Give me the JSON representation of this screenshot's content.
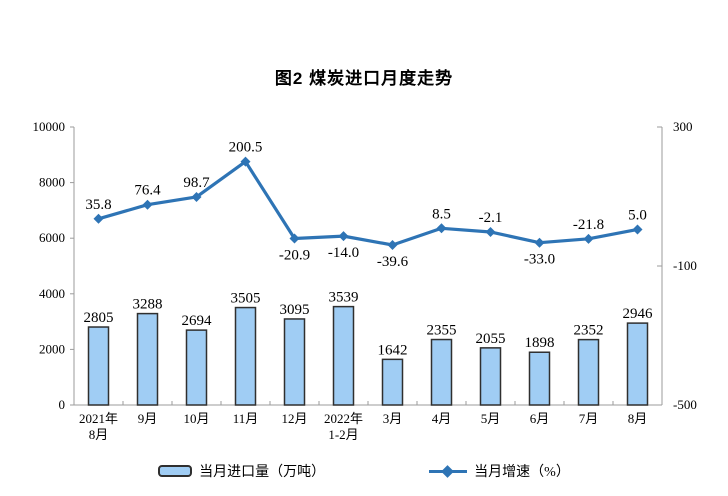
{
  "title": "图2 煤炭进口月度走势",
  "colors": {
    "bar_fill": "#A0CDF4",
    "bar_border": "#2F2F2F",
    "line": "#2E74B5",
    "axis": "#9B9B9B",
    "text": "#000000"
  },
  "legend": {
    "items": [
      {
        "type": "bar",
        "label": "当月进口量（万吨）"
      },
      {
        "type": "line",
        "label": "当月增速（%）"
      }
    ]
  },
  "chart_data": {
    "type": "combo_bar_line",
    "title": "图2 煤炭进口月度走势",
    "categories": [
      [
        "2021年",
        "8月"
      ],
      [
        "9月"
      ],
      [
        "10月"
      ],
      [
        "11月"
      ],
      [
        "12月"
      ],
      [
        "2022年",
        "1-2月"
      ],
      [
        "3月"
      ],
      [
        "4月"
      ],
      [
        "5月"
      ],
      [
        "6月"
      ],
      [
        "7月"
      ],
      [
        "8月"
      ]
    ],
    "series": [
      {
        "name": "当月进口量（万吨）",
        "type": "bar",
        "y_axis": "left",
        "values": [
          2805,
          3288,
          2694,
          3505,
          3095,
          3539,
          1642,
          2355,
          2055,
          1898,
          2352,
          2946
        ],
        "labels": [
          "2805",
          "3288",
          "2694",
          "3505",
          "3095",
          "3539",
          "1642",
          "2355",
          "2055",
          "1898",
          "2352",
          "2946"
        ]
      },
      {
        "name": "当月增速（%）",
        "type": "line",
        "y_axis": "right",
        "values": [
          35.8,
          76.4,
          98.7,
          200.5,
          -20.9,
          -14.0,
          -39.6,
          8.5,
          -2.1,
          -33.0,
          -21.8,
          5.0
        ],
        "labels": [
          "35.8",
          "76.4",
          "98.7",
          "200.5",
          "-20.9",
          "-14.0",
          "-39.6",
          "8.5",
          "-2.1",
          "-33.0",
          "-21.8",
          "5.0"
        ],
        "label_placement": [
          "above",
          "above",
          "above",
          "above",
          "below",
          "below",
          "below",
          "above",
          "above",
          "below",
          "above",
          "above"
        ]
      }
    ],
    "axes": {
      "left": {
        "range": [
          0,
          10000
        ],
        "tick_values": [
          0,
          2000,
          4000,
          6000,
          8000,
          10000
        ],
        "tick_labels": [
          "0",
          "2000",
          "4000",
          "6000",
          "8000",
          "10000"
        ]
      },
      "right": {
        "range": [
          -500,
          300
        ],
        "tick_values": [
          300,
          -100,
          -500
        ],
        "tick_labels": [
          "300",
          "-100",
          "-500"
        ]
      }
    },
    "grid": false,
    "legend_position": "bottom"
  }
}
